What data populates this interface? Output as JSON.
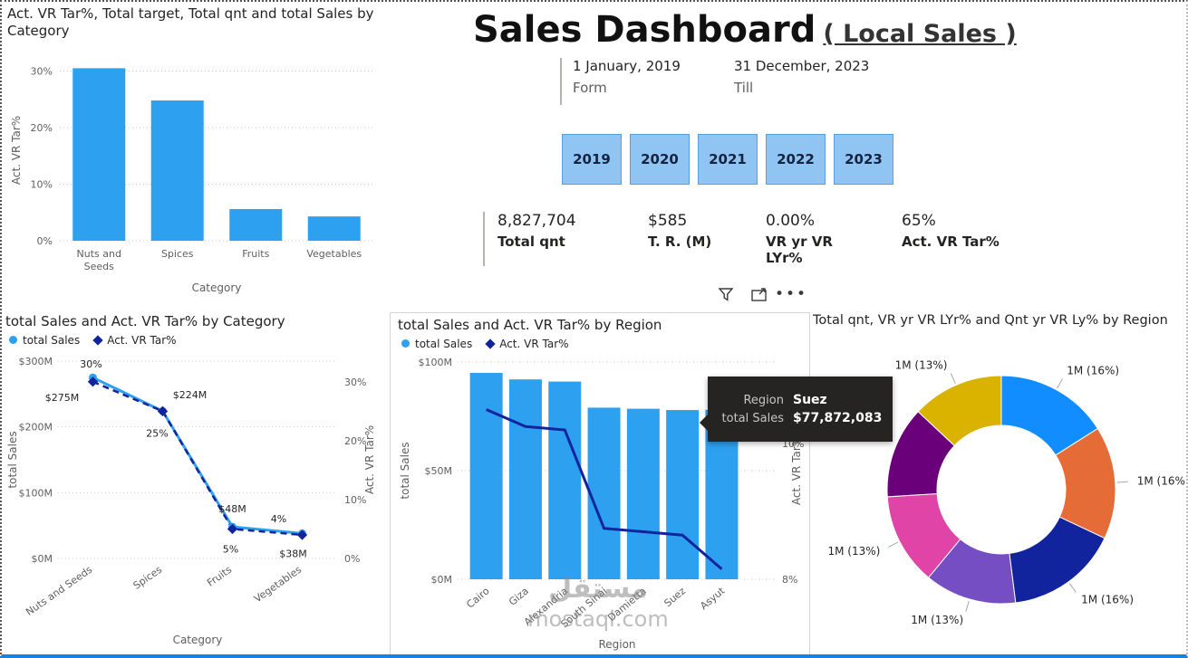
{
  "header": {
    "title": "Sales Dashboard",
    "subtitle": "( Local Sales )",
    "date_from": "1 January, 2019",
    "from_label": "Form",
    "date_till": "31 December, 2023",
    "till_label": "Till",
    "years": [
      "2019",
      "2020",
      "2021",
      "2022",
      "2023"
    ]
  },
  "kpis": [
    {
      "value": "8,827,704",
      "label": "Total qnt"
    },
    {
      "value": "$585",
      "label": "T. R. (M)"
    },
    {
      "value": "0.00%",
      "label": "VR yr VR LYr%"
    },
    {
      "value": "65%",
      "label": "Act. VR Tar%"
    }
  ],
  "toolbar": {
    "icons": [
      "filter-icon",
      "focus-mode-icon",
      "more-options-icon"
    ]
  },
  "tooltip": {
    "rows": [
      {
        "label": "Region",
        "value": "Suez"
      },
      {
        "label": "total Sales",
        "value": "$77,872,083"
      }
    ]
  },
  "watermark": {
    "line1": "مستقل",
    "line2": "mostaql.com"
  },
  "colors": {
    "bar_blue": "#2EA0F0",
    "line_navy": "#12239E",
    "axis_gray": "#605E5C",
    "accent_bottom": "#1284E8"
  },
  "chart_data": [
    {
      "type": "bar",
      "title": "Act. VR Tar%, Total target, Total qnt and total Sales by Category",
      "categories": [
        "Nuts and Seeds",
        "Spices",
        "Fruits",
        "Vegetables"
      ],
      "values": [
        30.5,
        24.8,
        5.6,
        4.3
      ],
      "xlabel": "Category",
      "ylabel": "Act. VR Tar%",
      "ylim": [
        0,
        32
      ],
      "yticks": [
        0,
        10,
        20,
        30
      ],
      "ytick_labels": [
        "0%",
        "10%",
        "20%",
        "30%"
      ],
      "bar_color": "#2EA0F0",
      "grid": true
    },
    {
      "type": "line",
      "title": "total Sales and Act. VR Tar% by Category",
      "categories": [
        "Nuts and Seeds",
        "Spices",
        "Fruits",
        "Vegetables"
      ],
      "series": [
        {
          "name": "total Sales",
          "values": [
            275,
            224,
            48,
            38
          ],
          "labels": [
            "$275M",
            "$224M",
            "$48M",
            "$38M"
          ],
          "color": "#2EA0F0",
          "style": "solid",
          "marker": "circle",
          "axis": "left"
        },
        {
          "name": "Act. VR Tar%",
          "values": [
            30,
            25,
            5,
            4
          ],
          "labels": [
            "30%",
            "25%",
            "5%",
            "4%"
          ],
          "color": "#12239E",
          "style": "dashed",
          "marker": "diamond",
          "axis": "right"
        }
      ],
      "xlabel": "Category",
      "ylabel": "total Sales",
      "y2label": "Act. VR Tar%",
      "ylim": [
        0,
        300
      ],
      "yticks": [
        0,
        100,
        200,
        300
      ],
      "ytick_labels": [
        "$0M",
        "$100M",
        "$200M",
        "$300M"
      ],
      "y2lim": [
        0,
        33.5
      ],
      "y2ticks": [
        0,
        10,
        20,
        30
      ],
      "y2tick_labels": [
        "0%",
        "10%",
        "20%",
        "30%"
      ],
      "grid": true,
      "legend_position": "top"
    },
    {
      "type": "bar+line",
      "title": "total Sales and Act. VR Tar% by Region",
      "categories": [
        "Cairo",
        "Giza",
        "Alexandria",
        "South Sinai",
        "Damietta",
        "Suez",
        "Asyut"
      ],
      "series": [
        {
          "name": "total Sales",
          "chart": "bar",
          "values": [
            95,
            92,
            91,
            79,
            78.5,
            77.9,
            78
          ],
          "unit": "$M",
          "color": "#2EA0F0",
          "marker": "circle"
        },
        {
          "name": "Act. VR Tar%",
          "chart": "line",
          "values": [
            10.5,
            10.25,
            10.2,
            8.75,
            8.7,
            8.65,
            8.15
          ],
          "unit": "%",
          "color": "#12239E",
          "marker": "diamond"
        }
      ],
      "xlabel": "Region",
      "ylabel": "total Sales",
      "y2label": "Act. VR Tar%",
      "ylim": [
        0,
        100
      ],
      "yticks": [
        0,
        50,
        100
      ],
      "ytick_labels": [
        "$0M",
        "$50M",
        "$100M"
      ],
      "y2lim": [
        8,
        11.2
      ],
      "y2ticks": [
        8,
        10
      ],
      "y2tick_labels": [
        "8%",
        "10%"
      ],
      "highlighted_bar": "Suez",
      "grid": true,
      "legend_position": "top"
    },
    {
      "type": "pie",
      "donut": true,
      "title": "Total qnt, VR yr VR LYr% and Qnt yr VR Ly% by Region",
      "slices": [
        {
          "label": "1M (16%)",
          "value": 16,
          "color": "#118DFF"
        },
        {
          "label": "1M (16%)",
          "value": 16,
          "color": "#E66C37"
        },
        {
          "label": "1M (16%)",
          "value": 16,
          "color": "#12239E"
        },
        {
          "label": "1M (13%)",
          "value": 13,
          "color": "#744EC2"
        },
        {
          "label": "1M (13%)",
          "value": 13,
          "color": "#E044A7"
        },
        {
          "label": "",
          "value": 13,
          "color": "#6B007B"
        },
        {
          "label": "1M (13%)",
          "value": 13,
          "color": "#D9B300"
        }
      ]
    }
  ]
}
